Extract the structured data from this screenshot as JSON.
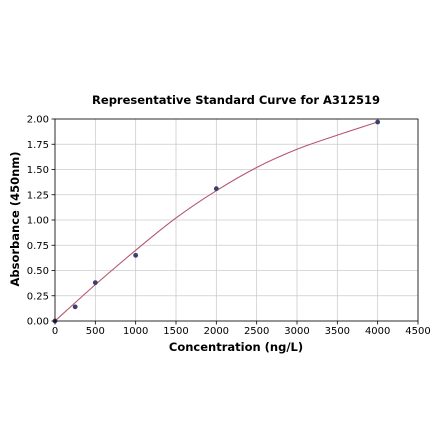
{
  "chart_data": {
    "type": "scatter",
    "title": "Representative Standard Curve for A312519",
    "xlabel": "Concentration (ng/L)",
    "ylabel": "Absorbance (450nm)",
    "xlim": [
      0,
      4500
    ],
    "ylim": [
      0,
      2.0
    ],
    "xticks": [
      0,
      500,
      1000,
      1500,
      2000,
      2500,
      3000,
      3500,
      4000,
      4500
    ],
    "yticks": [
      "0.00",
      "0.25",
      "0.50",
      "0.75",
      "1.00",
      "1.25",
      "1.50",
      "1.75",
      "2.00"
    ],
    "grid": true,
    "points": {
      "x": [
        0,
        250,
        500,
        1000,
        2000,
        4000
      ],
      "y": [
        0.0,
        0.14,
        0.38,
        0.65,
        1.31,
        1.97
      ]
    },
    "fit_curve": {
      "x": [
        0,
        500,
        1000,
        1500,
        2000,
        2500,
        3000,
        3500,
        4000
      ],
      "y": [
        0.0,
        0.36,
        0.7,
        1.02,
        1.29,
        1.52,
        1.7,
        1.84,
        1.97
      ]
    },
    "colors": {
      "points": "#3b3f6b",
      "curve": "#b5566e",
      "grid": "#cccccc",
      "axis": "#000000"
    }
  }
}
